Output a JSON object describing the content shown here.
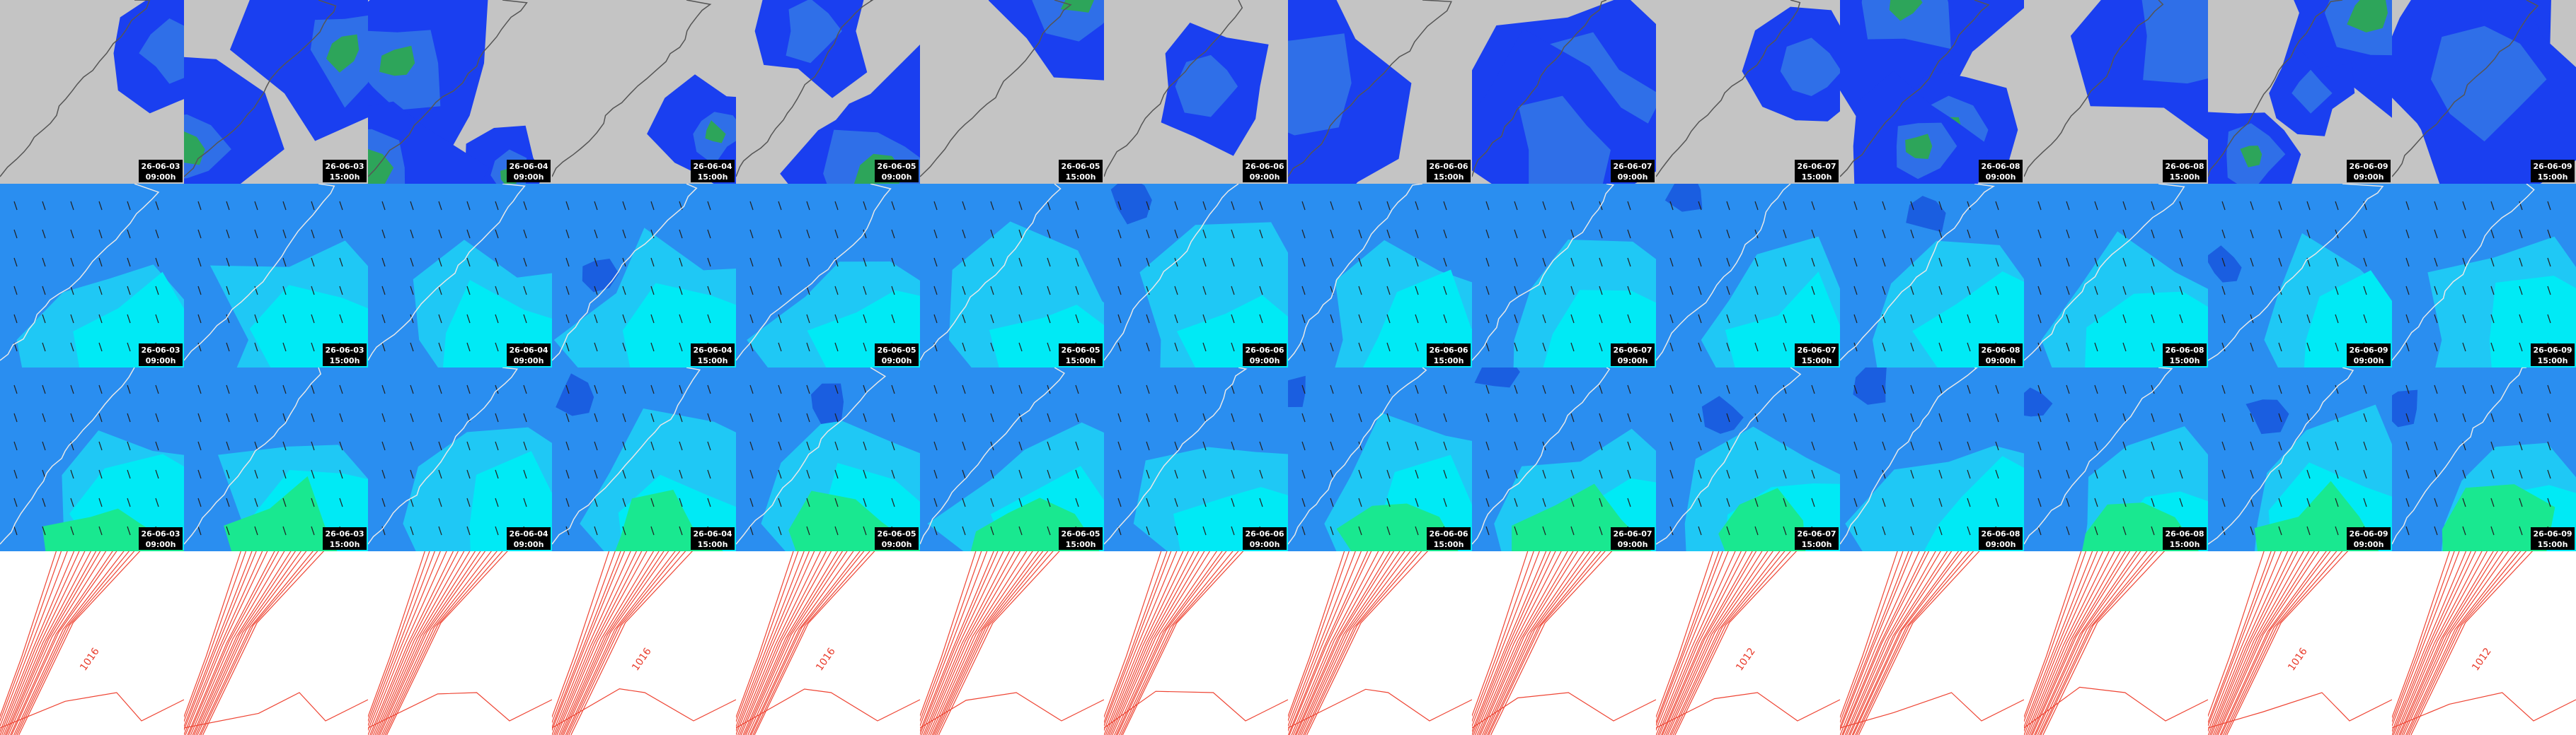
{
  "columns": [
    {
      "date": "26-06-03",
      "time": "09:00h",
      "isobar_label": "1016"
    },
    {
      "date": "26-06-03",
      "time": "15:00h",
      "isobar_label": null
    },
    {
      "date": "26-06-04",
      "time": "09:00h",
      "isobar_label": null
    },
    {
      "date": "26-06-04",
      "time": "15:00h",
      "isobar_label": "1016"
    },
    {
      "date": "26-06-05",
      "time": "09:00h",
      "isobar_label": "1016"
    },
    {
      "date": "26-06-05",
      "time": "15:00h",
      "isobar_label": null
    },
    {
      "date": "26-06-06",
      "time": "09:00h",
      "isobar_label": null
    },
    {
      "date": "26-06-06",
      "time": "15:00h",
      "isobar_label": null
    },
    {
      "date": "26-06-07",
      "time": "09:00h",
      "isobar_label": null
    },
    {
      "date": "26-06-07",
      "time": "15:00h",
      "isobar_label": "1012"
    },
    {
      "date": "26-06-08",
      "time": "09:00h",
      "isobar_label": null
    },
    {
      "date": "26-06-08",
      "time": "15:00h",
      "isobar_label": null
    },
    {
      "date": "26-06-09",
      "time": "09:00h",
      "isobar_label": "1016"
    },
    {
      "date": "26-06-09",
      "time": "15:00h",
      "isobar_label": "1012"
    }
  ]
}
